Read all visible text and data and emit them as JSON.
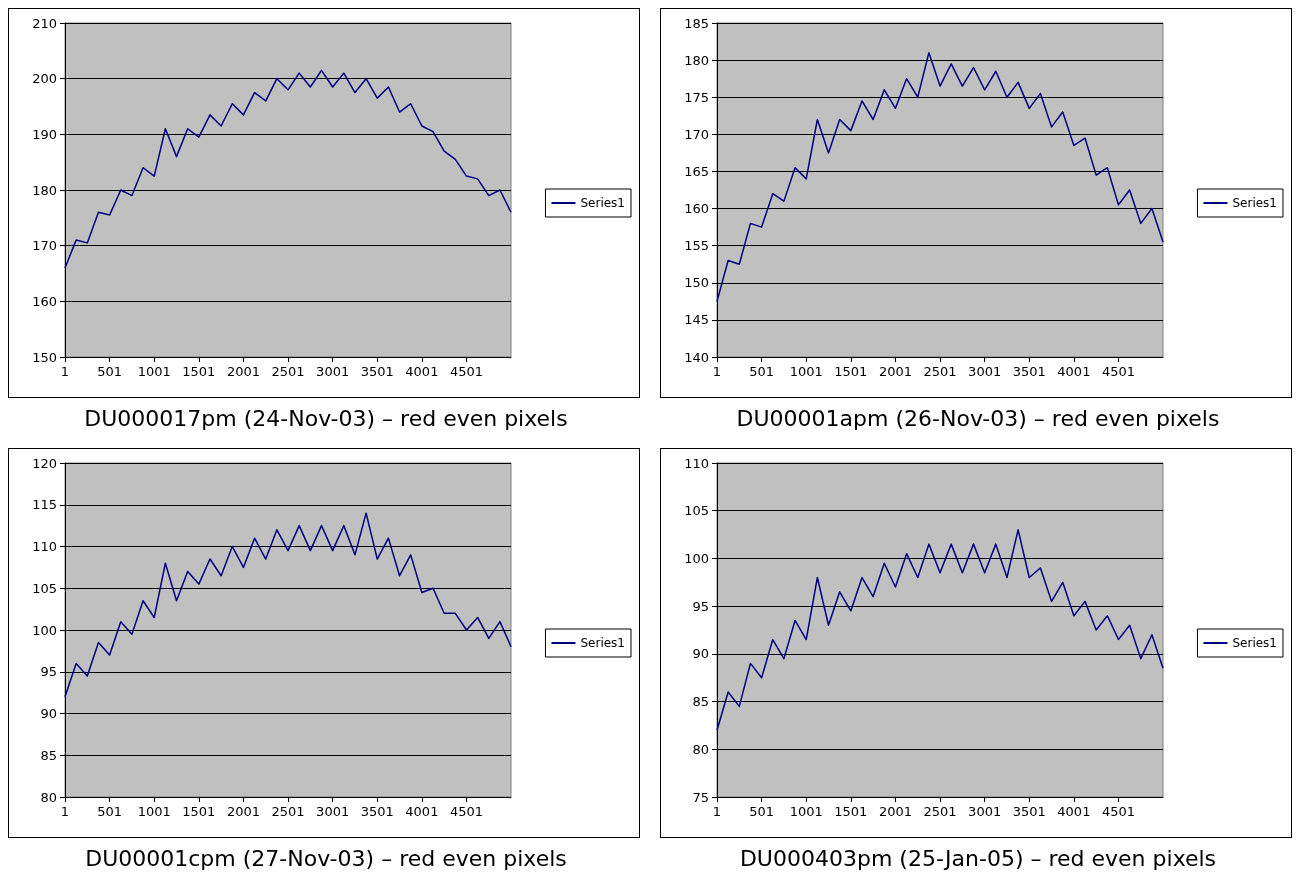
{
  "chart_data": [
    {
      "type": "line",
      "title": "DU000017pm (24-Nov-03) – red even pixels",
      "grid": "y",
      "legend": "right",
      "marker": "none",
      "xlim": [
        1,
        5000
      ],
      "xticks": [
        1,
        501,
        1001,
        1501,
        2001,
        2501,
        3001,
        3501,
        4001,
        4501
      ],
      "ylim": [
        150,
        210
      ],
      "yticks": [
        150,
        160,
        170,
        180,
        190,
        200,
        210
      ],
      "x": [
        1,
        126,
        251,
        376,
        501,
        626,
        751,
        876,
        1001,
        1126,
        1251,
        1376,
        1501,
        1626,
        1751,
        1876,
        2001,
        2126,
        2251,
        2376,
        2501,
        2626,
        2751,
        2876,
        3001,
        3126,
        3251,
        3376,
        3501,
        3626,
        3751,
        3876,
        4001,
        4126,
        4251,
        4376,
        4501,
        4626,
        4751,
        4876,
        5000
      ],
      "series": [
        {
          "name": "Series1",
          "color": "#000080",
          "values": [
            166,
            171,
            170.5,
            176,
            175.5,
            180,
            179,
            184,
            182.5,
            191,
            186,
            191,
            189.5,
            193.5,
            191.5,
            195.5,
            193.5,
            197.5,
            196,
            200,
            198,
            201,
            198.5,
            201.5,
            198.5,
            201,
            197.5,
            200,
            196.5,
            198.5,
            194,
            195.5,
            191.5,
            190.5,
            187,
            185.5,
            182.5,
            182,
            179,
            180,
            176
          ]
        }
      ]
    },
    {
      "type": "line",
      "title": "DU00001apm (26-Nov-03) – red even pixels",
      "grid": "y",
      "legend": "right",
      "marker": "none",
      "xlim": [
        1,
        5000
      ],
      "xticks": [
        1,
        501,
        1001,
        1501,
        2001,
        2501,
        3001,
        3501,
        4001,
        4501
      ],
      "ylim": [
        140,
        185
      ],
      "yticks": [
        140,
        145,
        150,
        155,
        160,
        165,
        170,
        175,
        180,
        185
      ],
      "x": [
        1,
        126,
        251,
        376,
        501,
        626,
        751,
        876,
        1001,
        1126,
        1251,
        1376,
        1501,
        1626,
        1751,
        1876,
        2001,
        2126,
        2251,
        2376,
        2501,
        2626,
        2751,
        2876,
        3001,
        3126,
        3251,
        3376,
        3501,
        3626,
        3751,
        3876,
        4001,
        4126,
        4251,
        4376,
        4501,
        4626,
        4751,
        4876,
        5000
      ],
      "series": [
        {
          "name": "Series1",
          "color": "#000080",
          "values": [
            147.5,
            153,
            152.5,
            158,
            157.5,
            162,
            161,
            165.5,
            164,
            172,
            167.5,
            172,
            170.5,
            174.5,
            172,
            176,
            173.5,
            177.5,
            175,
            181,
            176.5,
            179.5,
            176.5,
            179,
            176,
            178.5,
            175,
            177,
            173.5,
            175.5,
            171,
            173,
            168.5,
            169.5,
            164.5,
            165.5,
            160.5,
            162.5,
            158,
            160,
            155.5
          ]
        }
      ]
    },
    {
      "type": "line",
      "title": "DU00001cpm (27-Nov-03) – red even pixels",
      "grid": "y",
      "legend": "right",
      "marker": "none",
      "xlim": [
        1,
        5000
      ],
      "xticks": [
        1,
        501,
        1001,
        1501,
        2001,
        2501,
        3001,
        3501,
        4001,
        4501
      ],
      "ylim": [
        80,
        120
      ],
      "yticks": [
        80,
        85,
        90,
        95,
        100,
        105,
        110,
        115,
        120
      ],
      "x": [
        1,
        126,
        251,
        376,
        501,
        626,
        751,
        876,
        1001,
        1126,
        1251,
        1376,
        1501,
        1626,
        1751,
        1876,
        2001,
        2126,
        2251,
        2376,
        2501,
        2626,
        2751,
        2876,
        3001,
        3126,
        3251,
        3376,
        3501,
        3626,
        3751,
        3876,
        4001,
        4126,
        4251,
        4376,
        4501,
        4626,
        4751,
        4876,
        5000
      ],
      "series": [
        {
          "name": "Series1",
          "color": "#000080",
          "values": [
            92,
            96,
            94.5,
            98.5,
            97,
            101,
            99.5,
            103.5,
            101.5,
            108,
            103.5,
            107,
            105.5,
            108.5,
            106.5,
            110,
            107.5,
            111,
            108.5,
            112,
            109.5,
            112.5,
            109.5,
            112.5,
            109.5,
            112.5,
            109,
            114,
            108.5,
            111,
            106.5,
            109,
            104.5,
            105,
            102,
            102,
            100,
            101.5,
            99,
            101,
            98
          ]
        }
      ]
    },
    {
      "type": "line",
      "title": "DU000403pm (25-Jan-05) – red even pixels",
      "grid": "y",
      "legend": "right",
      "marker": "none",
      "xlim": [
        1,
        5000
      ],
      "xticks": [
        1,
        501,
        1001,
        1501,
        2001,
        2501,
        3001,
        3501,
        4001,
        4501
      ],
      "ylim": [
        75,
        110
      ],
      "yticks": [
        75,
        80,
        85,
        90,
        95,
        100,
        105,
        110
      ],
      "x": [
        1,
        126,
        251,
        376,
        501,
        626,
        751,
        876,
        1001,
        1126,
        1251,
        1376,
        1501,
        1626,
        1751,
        1876,
        2001,
        2126,
        2251,
        2376,
        2501,
        2626,
        2751,
        2876,
        3001,
        3126,
        3251,
        3376,
        3501,
        3626,
        3751,
        3876,
        4001,
        4126,
        4251,
        4376,
        4501,
        4626,
        4751,
        4876,
        5000
      ],
      "series": [
        {
          "name": "Series1",
          "color": "#000080",
          "values": [
            82,
            86,
            84.5,
            89,
            87.5,
            91.5,
            89.5,
            93.5,
            91.5,
            98,
            93,
            96.5,
            94.5,
            98,
            96,
            99.5,
            97,
            100.5,
            98,
            101.5,
            98.5,
            101.5,
            98.5,
            101.5,
            98.5,
            101.5,
            98,
            103,
            98,
            99,
            95.5,
            97.5,
            94,
            95.5,
            92.5,
            94,
            91.5,
            93,
            89.5,
            92,
            88.5
          ]
        }
      ]
    }
  ]
}
